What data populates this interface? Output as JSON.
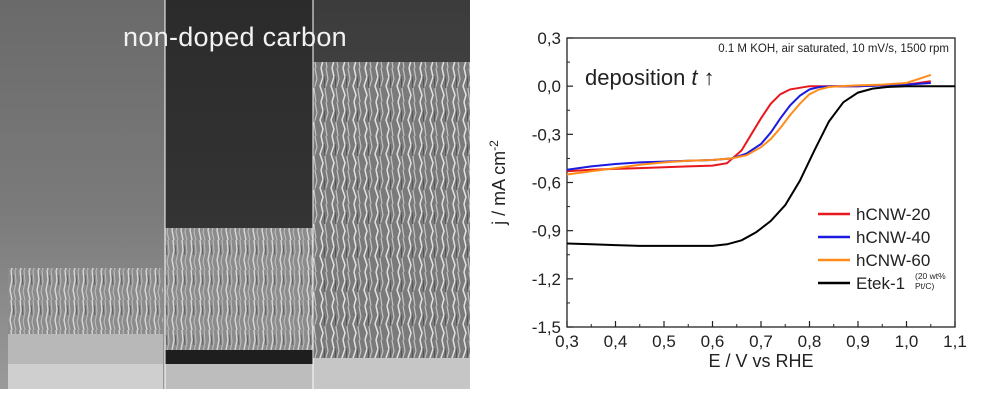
{
  "sem_panel": {
    "caption": "non-doped carbon"
  },
  "chart_data": {
    "type": "line",
    "annotation": "0.1 M KOH, air saturated, 10 mV/s, 1500 rpm",
    "inset_label_main": "deposition ",
    "inset_label_var": "t",
    "inset_label_arrow": " ↑",
    "xlabel": "E / V vs RHE",
    "ylabel": "j / mA cm",
    "ylabel_sup": "-2",
    "xlim": [
      0.3,
      1.1
    ],
    "ylim": [
      -1.5,
      0.3
    ],
    "x_ticks": [
      "0,3",
      "0,4",
      "0,5",
      "0,6",
      "0,7",
      "0,8",
      "0,9",
      "1,0",
      "1,1"
    ],
    "x_tick_values": [
      0.3,
      0.4,
      0.5,
      0.6,
      0.7,
      0.8,
      0.9,
      1.0,
      1.1
    ],
    "y_ticks": [
      "0,3",
      "0,0",
      "-0,3",
      "-0,6",
      "-0,9",
      "-1,2",
      "-1,5"
    ],
    "y_tick_values": [
      0.3,
      0.0,
      -0.3,
      -0.6,
      -0.9,
      -1.2,
      -1.5
    ],
    "legend_position": "bottom-right",
    "series": [
      {
        "name": "hCNW-20",
        "color": "#e8181c",
        "x": [
          0.3,
          0.35,
          0.4,
          0.45,
          0.5,
          0.55,
          0.6,
          0.63,
          0.66,
          0.68,
          0.7,
          0.72,
          0.74,
          0.76,
          0.78,
          0.8,
          0.85,
          0.9,
          0.95,
          1.0,
          1.05
        ],
        "y": [
          -0.53,
          -0.52,
          -0.515,
          -0.51,
          -0.505,
          -0.5,
          -0.495,
          -0.48,
          -0.4,
          -0.3,
          -0.2,
          -0.11,
          -0.05,
          -0.02,
          -0.01,
          0.0,
          0.0,
          0.0,
          0.005,
          0.01,
          0.03
        ]
      },
      {
        "name": "hCNW-40",
        "color": "#1a1ae0",
        "x": [
          0.3,
          0.35,
          0.4,
          0.45,
          0.5,
          0.55,
          0.6,
          0.64,
          0.67,
          0.7,
          0.72,
          0.74,
          0.76,
          0.78,
          0.8,
          0.82,
          0.85,
          0.9,
          0.95,
          1.0,
          1.05
        ],
        "y": [
          -0.52,
          -0.5,
          -0.485,
          -0.475,
          -0.47,
          -0.465,
          -0.46,
          -0.45,
          -0.42,
          -0.36,
          -0.29,
          -0.2,
          -0.12,
          -0.06,
          -0.02,
          -0.005,
          0.0,
          0.0,
          0.005,
          0.01,
          0.02
        ]
      },
      {
        "name": "hCNW-60",
        "color": "#ff8c1a",
        "x": [
          0.3,
          0.35,
          0.4,
          0.45,
          0.5,
          0.55,
          0.6,
          0.64,
          0.67,
          0.7,
          0.72,
          0.74,
          0.76,
          0.78,
          0.8,
          0.82,
          0.84,
          0.86,
          0.9,
          0.95,
          1.0,
          1.05
        ],
        "y": [
          -0.55,
          -0.53,
          -0.51,
          -0.49,
          -0.475,
          -0.465,
          -0.46,
          -0.45,
          -0.43,
          -0.38,
          -0.33,
          -0.26,
          -0.18,
          -0.11,
          -0.05,
          -0.02,
          -0.005,
          0.0,
          0.005,
          0.01,
          0.02,
          0.07
        ]
      },
      {
        "name": "Etek-1",
        "color": "#000000",
        "x": [
          0.3,
          0.35,
          0.4,
          0.45,
          0.5,
          0.55,
          0.6,
          0.63,
          0.66,
          0.69,
          0.72,
          0.75,
          0.78,
          0.81,
          0.84,
          0.87,
          0.9,
          0.93,
          0.96,
          1.0,
          1.05,
          1.1
        ],
        "y": [
          -0.98,
          -0.985,
          -0.99,
          -0.995,
          -0.995,
          -0.995,
          -0.995,
          -0.985,
          -0.96,
          -0.91,
          -0.84,
          -0.74,
          -0.59,
          -0.4,
          -0.22,
          -0.1,
          -0.04,
          -0.015,
          -0.005,
          0.0,
          0.0,
          0.0
        ]
      }
    ],
    "legend_note": "(20 wt%",
    "legend_note2": "Pt/C)"
  }
}
